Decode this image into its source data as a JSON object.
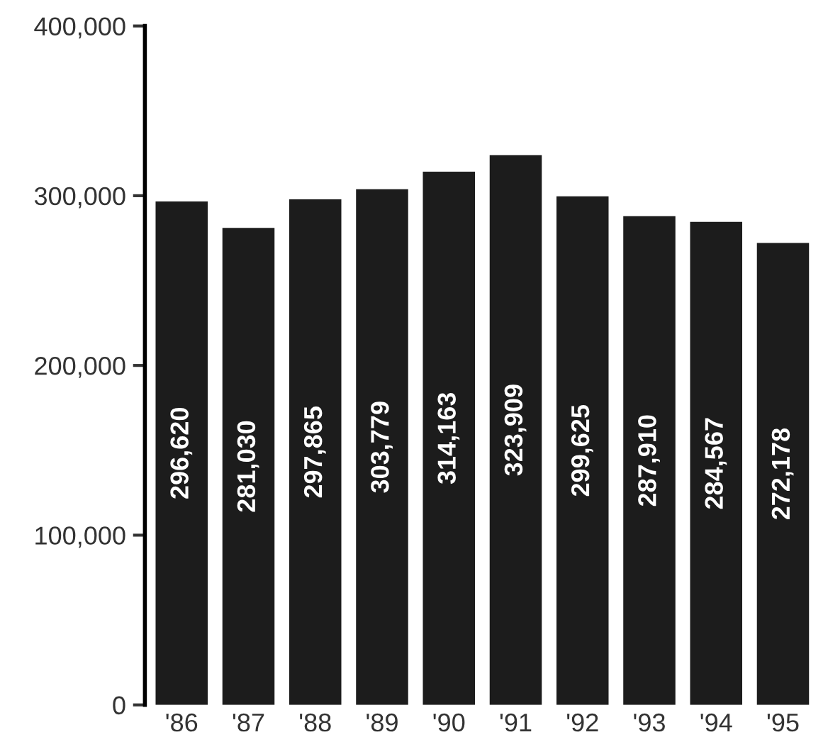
{
  "chart_data": {
    "type": "bar",
    "categories": [
      "'86",
      "'87",
      "'88",
      "'89",
      "'90",
      "'91",
      "'92",
      "'93",
      "'94",
      "'95"
    ],
    "values": [
      296620,
      281030,
      297865,
      303779,
      314163,
      323909,
      299625,
      287910,
      284567,
      272178
    ],
    "value_labels": [
      "296,620",
      "281,030",
      "297,865",
      "303,779",
      "314,163",
      "323,909",
      "299,625",
      "287,910",
      "284,567",
      "272,178"
    ],
    "color": "#1c1c1c",
    "ylim": [
      0,
      400000
    ],
    "yticks": [
      {
        "value": 0,
        "label": "0"
      },
      {
        "value": 100000,
        "label": "100,000"
      },
      {
        "value": 200000,
        "label": "200,000"
      },
      {
        "value": 300000,
        "label": "300,000"
      },
      {
        "value": 400000,
        "label": "400,000"
      }
    ],
    "grid": false,
    "legend": false
  }
}
